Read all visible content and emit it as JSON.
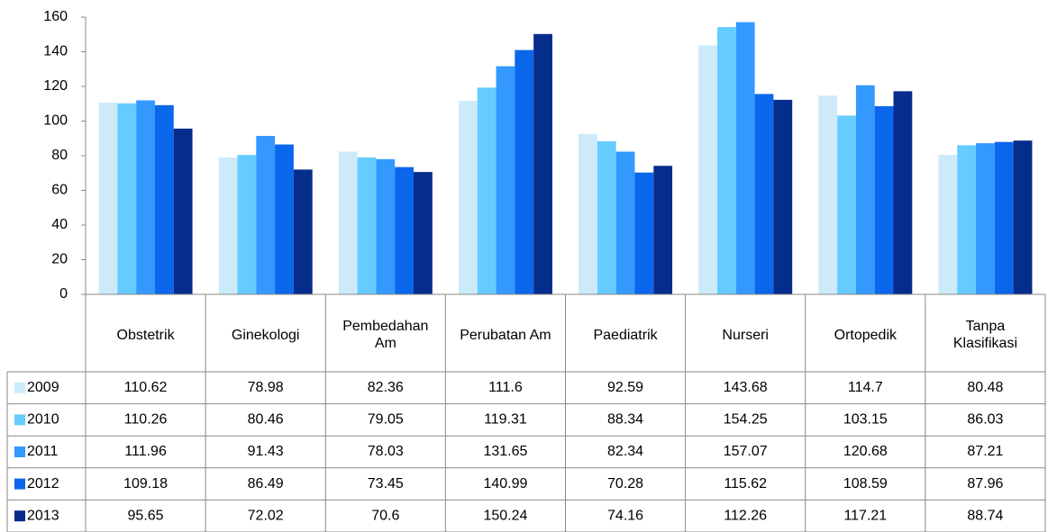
{
  "chart_data": {
    "type": "bar",
    "categories": [
      "Obstetrik",
      "Ginekologi",
      "Pembedahan Am",
      "Perubatan Am",
      "Paediatrik",
      "Nurseri",
      "Ortopedik",
      "Tanpa Klasifikasi"
    ],
    "series": [
      {
        "name": "2009",
        "color": "#cdeafa",
        "values": [
          110.62,
          78.98,
          82.36,
          111.6,
          92.59,
          143.68,
          114.7,
          80.48
        ]
      },
      {
        "name": "2010",
        "color": "#66ccff",
        "values": [
          110.26,
          80.46,
          79.05,
          119.31,
          88.34,
          154.25,
          103.15,
          86.03
        ]
      },
      {
        "name": "2011",
        "color": "#3399ff",
        "values": [
          111.96,
          91.43,
          78.03,
          131.65,
          82.34,
          157.07,
          120.68,
          87.21
        ]
      },
      {
        "name": "2012",
        "color": "#0a66ea",
        "values": [
          109.18,
          86.49,
          73.45,
          140.99,
          70.28,
          115.62,
          108.59,
          87.96
        ]
      },
      {
        "name": "2013",
        "color": "#062c8c",
        "values": [
          95.65,
          72.02,
          70.6,
          150.24,
          74.16,
          112.26,
          117.21,
          88.74
        ]
      }
    ],
    "ylim": [
      0,
      160
    ],
    "yticks": [
      0,
      20,
      40,
      60,
      80,
      100,
      120,
      140,
      160
    ],
    "grid": false
  }
}
